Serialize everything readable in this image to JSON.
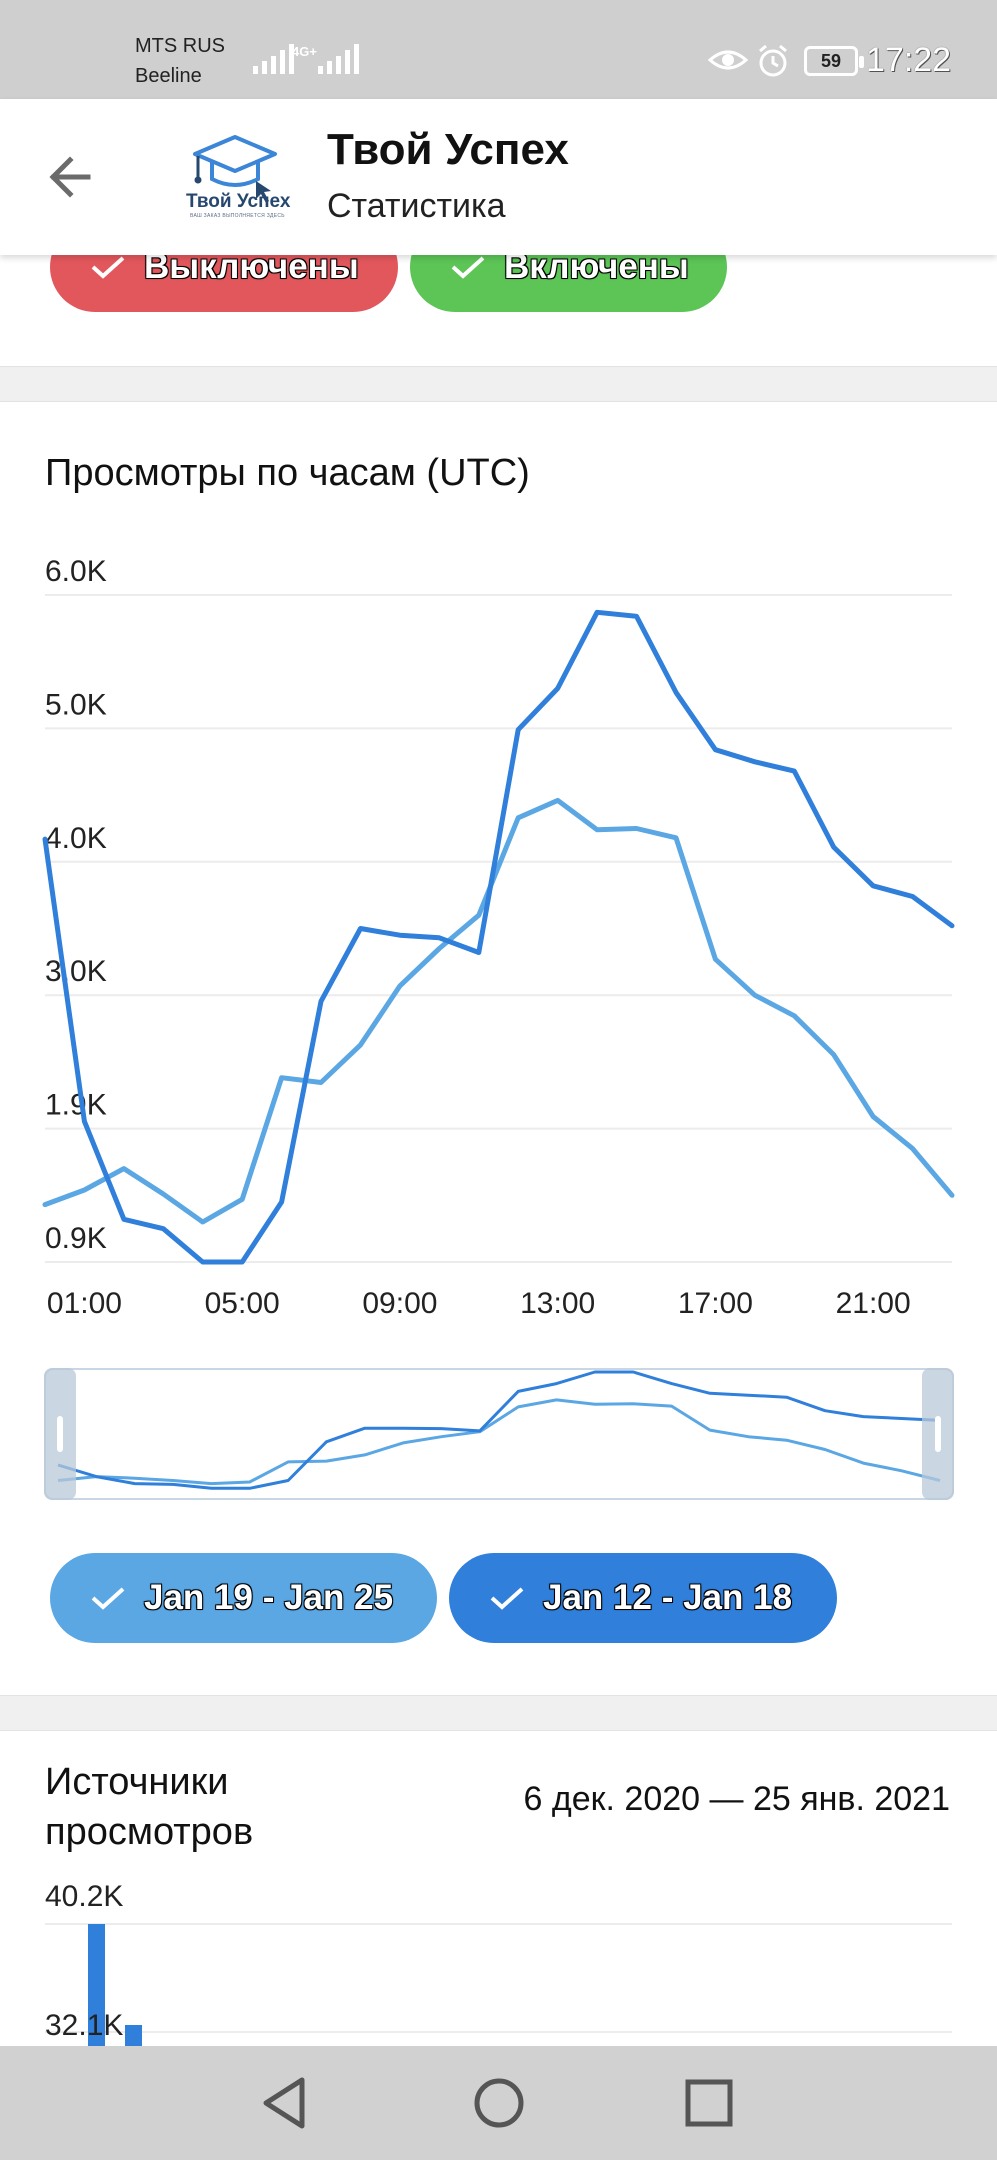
{
  "status_bar": {
    "carrier_1": "MTS RUS",
    "carrier_2": "Beeline",
    "network_type": "4G+",
    "battery": "59",
    "time": "17:22",
    "icons": [
      "signal-icon",
      "signal-icon",
      "eye-icon",
      "alarm-icon",
      "battery-icon"
    ]
  },
  "app_bar": {
    "back_icon": "arrow-left-icon",
    "logo_text": "Твой Успех",
    "logo_tagline": "ВАШ ЗАКАЗ ВЫПОЛНЯЕТСЯ ЗДЕСЬ",
    "title": "Твой Успех",
    "subtitle": "Статистика"
  },
  "filters_top": [
    {
      "label": "Выключены",
      "color": "#e2575c"
    },
    {
      "label": "Включены",
      "color": "#5cc556"
    }
  ],
  "chart_section": {
    "title": "Просмотры по часам (UTC)",
    "chips": [
      {
        "label": "Jan 19 - Jan 25",
        "color": "#5aa7e4"
      },
      {
        "label": "Jan 12 - Jan 18",
        "color": "#2f7fdb"
      }
    ]
  },
  "chart_data": {
    "type": "line",
    "title": "Просмотры по часам (UTC)",
    "ytick_labels": [
      "6.0K",
      "5.0K",
      "4.0K",
      "3.0K",
      "1.9K",
      "0.9K"
    ],
    "xtick_labels": [
      "01:00",
      "05:00",
      "09:00",
      "13:00",
      "17:00",
      "21:00"
    ],
    "x": [
      "00:00",
      "01:00",
      "02:00",
      "03:00",
      "04:00",
      "05:00",
      "06:00",
      "07:00",
      "08:00",
      "09:00",
      "10:00",
      "11:00",
      "12:00",
      "13:00",
      "14:00",
      "15:00",
      "16:00",
      "17:00",
      "18:00",
      "19:00",
      "20:00",
      "21:00",
      "22:00",
      "23:00"
    ],
    "ylim": [
      0.9,
      6.0
    ],
    "grid": true,
    "legend": "chips-below",
    "series": [
      {
        "name": "Jan 19 - Jan 25",
        "color": "#5aa7e4",
        "values": [
          1.33,
          1.44,
          1.6,
          1.41,
          1.2,
          1.37,
          2.32,
          2.28,
          2.59,
          3.07,
          3.35,
          3.6,
          4.33,
          4.46,
          4.24,
          4.25,
          4.18,
          3.27,
          3.0,
          2.83,
          2.51,
          2.0,
          1.75,
          1.4
        ],
        "navigator_values": [
          1.3,
          1.4,
          1.36,
          1.3,
          1.22,
          1.26,
          1.78,
          1.8,
          1.96,
          2.27,
          2.43,
          2.56,
          3.2,
          3.38,
          3.27,
          3.28,
          3.22,
          2.6,
          2.43,
          2.34,
          2.1,
          1.75,
          1.55,
          1.3
        ]
      },
      {
        "name": "Jan 12 - Jan 18",
        "color": "#2f7fdb",
        "values": [
          4.17,
          1.96,
          1.22,
          1.15,
          0.9,
          0.9,
          1.35,
          2.95,
          3.5,
          3.45,
          3.43,
          3.32,
          4.99,
          5.3,
          5.87,
          5.84,
          5.27,
          4.84,
          4.75,
          4.68,
          4.11,
          3.82,
          3.74,
          3.52
        ],
        "navigator_values": [
          1.7,
          1.4,
          1.22,
          1.2,
          1.1,
          1.1,
          1.3,
          2.3,
          2.65,
          2.65,
          2.64,
          2.58,
          3.6,
          3.8,
          4.1,
          4.1,
          3.8,
          3.55,
          3.5,
          3.45,
          3.1,
          2.95,
          2.9,
          2.85
        ]
      }
    ]
  },
  "sources_section": {
    "title": "Источники просмотров",
    "date_range": "6 дек. 2020 — 25 янв. 2021",
    "ytick_labels": [
      "40.2K",
      "32.1K"
    ],
    "bar_color": "#2f7fdb"
  },
  "nav_bar": {
    "icons": [
      "nav-back-icon",
      "nav-home-icon",
      "nav-recent-icon"
    ]
  }
}
